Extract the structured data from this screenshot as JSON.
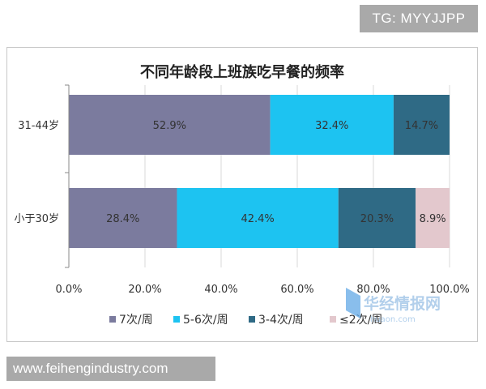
{
  "tg_label": "TG: MYYJJPP",
  "website_label": "www.feihengindustry.com",
  "watermark": {
    "cn": "华经情报网",
    "en": "huaon.com"
  },
  "chart_data": {
    "type": "bar",
    "orientation": "horizontal",
    "stacked": true,
    "title": "不同年龄段上班族吃早餐的频率",
    "categories": [
      "31-44岁",
      "小于30岁"
    ],
    "series": [
      {
        "name": "7次/周",
        "color": "#7b7b9e",
        "values": [
          52.9,
          28.4
        ]
      },
      {
        "name": "5-6次/周",
        "color": "#1dc3f1",
        "values": [
          32.4,
          42.4
        ]
      },
      {
        "name": "3-4次/周",
        "color": "#2f6a85",
        "values": [
          14.7,
          20.3
        ]
      },
      {
        "name": "≤2次/周",
        "color": "#e3c8cd",
        "values": [
          0,
          8.9
        ]
      }
    ],
    "data_labels": [
      [
        "52.9%",
        "32.4%",
        "14.7%",
        ""
      ],
      [
        "28.4%",
        "42.4%",
        "20.3%",
        "8.9%"
      ]
    ],
    "xticks": [
      "0.0%",
      "20.0%",
      "40.0%",
      "60.0%",
      "80.0%",
      "100.0%"
    ],
    "xlim": [
      0,
      100
    ],
    "grid": true,
    "legend_position": "bottom"
  }
}
